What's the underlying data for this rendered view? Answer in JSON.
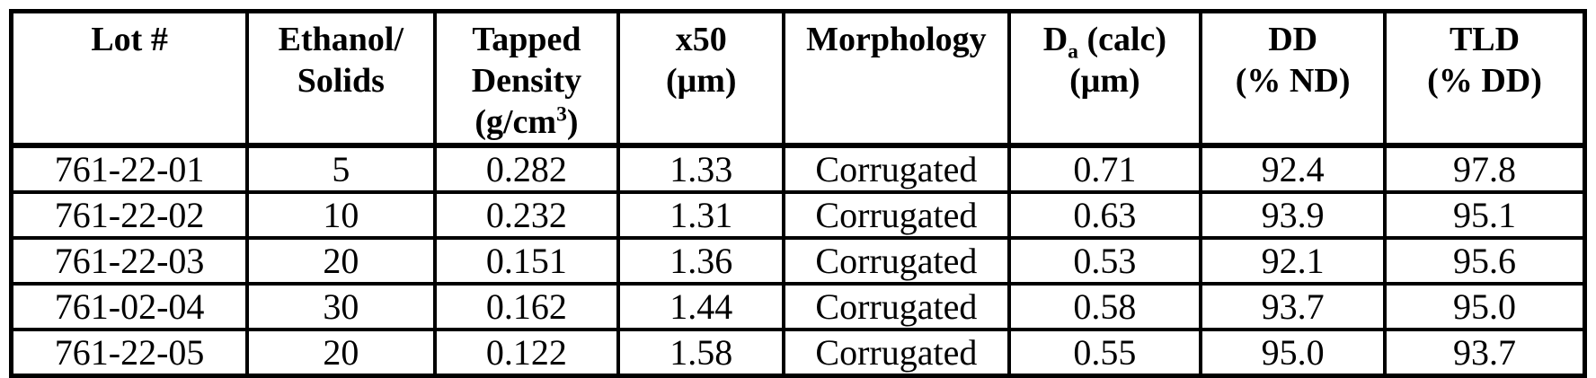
{
  "colors": {
    "background": "#ffffff",
    "text": "#000000",
    "border": "#000000"
  },
  "table": {
    "columns": [
      {
        "id": "lot-number",
        "lines": [
          [
            {
              "t": "Lot #"
            }
          ]
        ]
      },
      {
        "id": "ethanol-solids",
        "lines": [
          [
            {
              "t": "Ethanol/"
            }
          ],
          [
            {
              "t": "Solids"
            }
          ]
        ]
      },
      {
        "id": "tapped-density",
        "lines": [
          [
            {
              "t": "Tapped"
            }
          ],
          [
            {
              "t": "Density"
            }
          ],
          [
            {
              "t": "(g/cm"
            },
            {
              "t": "3",
              "style": "sup"
            },
            {
              "t": ")"
            }
          ]
        ]
      },
      {
        "id": "x50",
        "lines": [
          [
            {
              "t": "x50"
            }
          ],
          [
            {
              "t": "(μm)"
            }
          ]
        ]
      },
      {
        "id": "morphology",
        "lines": [
          [
            {
              "t": "Morphology"
            }
          ]
        ]
      },
      {
        "id": "da-calc",
        "lines": [
          [
            {
              "t": "D"
            },
            {
              "t": "a",
              "style": "sub"
            },
            {
              "t": " (calc)"
            }
          ],
          [
            {
              "t": "(μm)"
            }
          ]
        ]
      },
      {
        "id": "dd",
        "lines": [
          [
            {
              "t": "DD"
            }
          ],
          [
            {
              "t": "(% ND)"
            }
          ]
        ]
      },
      {
        "id": "tld",
        "lines": [
          [
            {
              "t": "TLD"
            }
          ],
          [
            {
              "t": "(% DD)"
            }
          ]
        ]
      }
    ],
    "rows": [
      [
        "761-22-01",
        "5",
        "0.282",
        "1.33",
        "Corrugated",
        "0.71",
        "92.4",
        "97.8"
      ],
      [
        "761-22-02",
        "10",
        "0.232",
        "1.31",
        "Corrugated",
        "0.63",
        "93.9",
        "95.1"
      ],
      [
        "761-22-03",
        "20",
        "0.151",
        "1.36",
        "Corrugated",
        "0.53",
        "92.1",
        "95.6"
      ],
      [
        "761-02-04",
        "30",
        "0.162",
        "1.44",
        "Corrugated",
        "0.58",
        "93.7",
        "95.0"
      ],
      [
        "761-22-05",
        "20",
        "0.122",
        "1.58",
        "Corrugated",
        "0.55",
        "95.0",
        "93.7"
      ]
    ]
  }
}
